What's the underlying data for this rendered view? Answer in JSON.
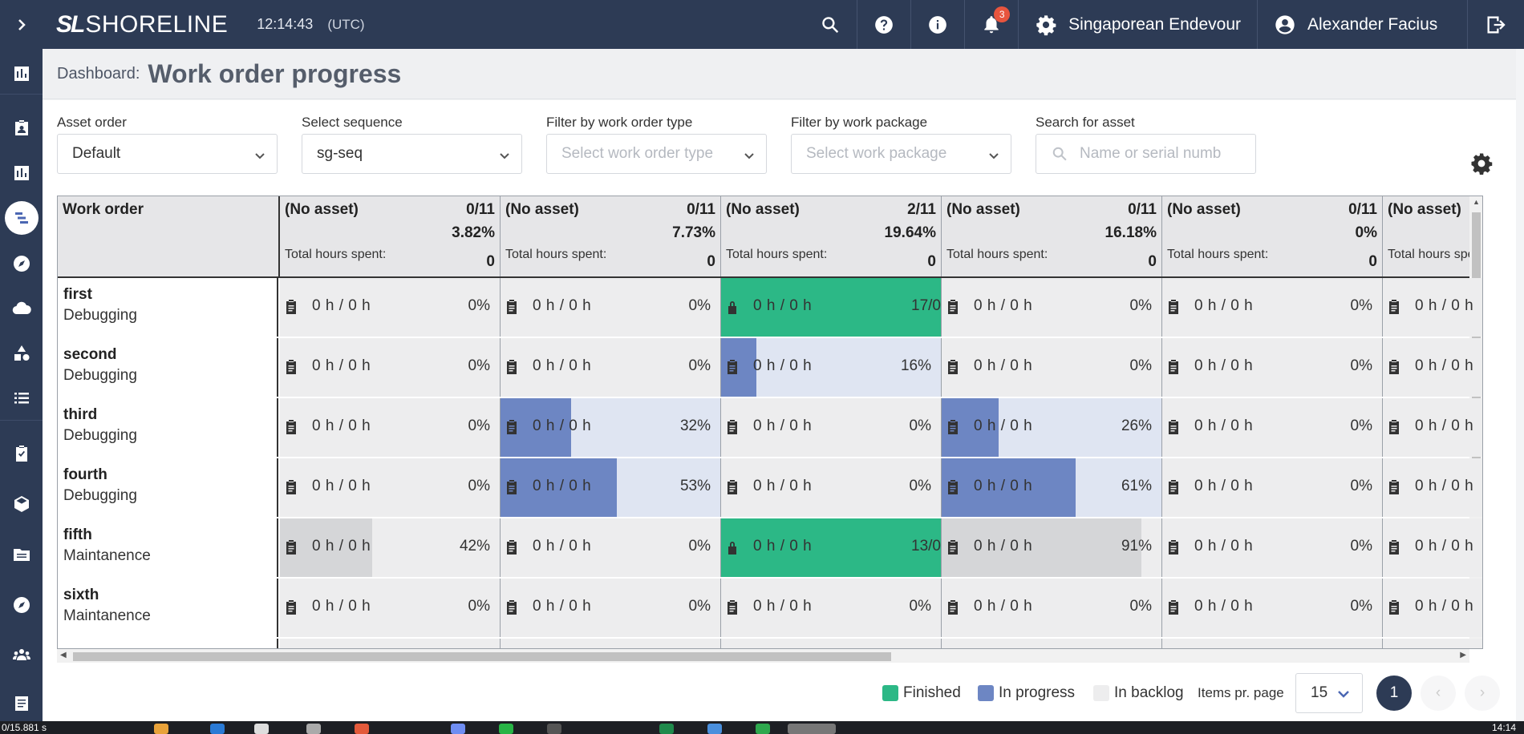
{
  "app": {
    "logo_mark": "SL",
    "logo_word": "SHORELINE",
    "clock": "12:14:43",
    "timezone": "(UTC)"
  },
  "topbar": {
    "notification_count": "3",
    "vessel": "Singaporean Endevour",
    "user": "Alexander Facius"
  },
  "header": {
    "breadcrumb": "Dashboard:",
    "title": "Work order progress"
  },
  "filters": {
    "asset_order": {
      "label": "Asset order",
      "value": "Default"
    },
    "sequence": {
      "label": "Select sequence",
      "value": "sg-seq"
    },
    "work_order_type": {
      "label": "Filter by work order type",
      "placeholder": "Select work order type"
    },
    "work_package": {
      "label": "Filter by work package",
      "placeholder": "Select work package"
    },
    "asset_search": {
      "label": "Search for asset",
      "placeholder": "Name or serial numb"
    }
  },
  "grid": {
    "corner": "Work order",
    "total_hours_label": "Total hours spent:",
    "columns": [
      {
        "asset": "(No asset)",
        "count": "0/11",
        "percent": "3.82%",
        "hours": "0"
      },
      {
        "asset": "(No asset)",
        "count": "0/11",
        "percent": "7.73%",
        "hours": "0"
      },
      {
        "asset": "(No asset)",
        "count": "2/11",
        "percent": "19.64%",
        "hours": "0"
      },
      {
        "asset": "(No asset)",
        "count": "0/11",
        "percent": "16.18%",
        "hours": "0"
      },
      {
        "asset": "(No asset)",
        "count": "0/11",
        "percent": "0%",
        "hours": "0"
      },
      {
        "asset": "(No asset)",
        "count": "",
        "percent": "",
        "hours": ""
      }
    ],
    "rows": [
      {
        "name": "first",
        "type": "Debugging",
        "cells": [
          {
            "text": "0 h / 0 h",
            "pct": "0%",
            "state": "backlog",
            "progress": 0
          },
          {
            "text": "0 h / 0 h",
            "pct": "0%",
            "state": "backlog",
            "progress": 0
          },
          {
            "text": "0 h / 0 h",
            "pct": "17/0",
            "state": "finished",
            "progress": 1
          },
          {
            "text": "0 h / 0 h",
            "pct": "0%",
            "state": "backlog",
            "progress": 0
          },
          {
            "text": "0 h / 0 h",
            "pct": "0%",
            "state": "backlog",
            "progress": 0
          },
          {
            "text": "0 h / 0 h",
            "pct": "",
            "state": "backlog",
            "progress": 0
          }
        ]
      },
      {
        "name": "second",
        "type": "Debugging",
        "cells": [
          {
            "text": "0 h / 0 h",
            "pct": "0%",
            "state": "backlog",
            "progress": 0
          },
          {
            "text": "0 h / 0 h",
            "pct": "0%",
            "state": "backlog",
            "progress": 0
          },
          {
            "text": "0 h / 0 h",
            "pct": "16%",
            "state": "progress",
            "progress": 0.16
          },
          {
            "text": "0 h / 0 h",
            "pct": "0%",
            "state": "backlog",
            "progress": 0
          },
          {
            "text": "0 h / 0 h",
            "pct": "0%",
            "state": "backlog",
            "progress": 0
          },
          {
            "text": "0 h / 0 h",
            "pct": "",
            "state": "backlog",
            "progress": 0
          }
        ]
      },
      {
        "name": "third",
        "type": "Debugging",
        "cells": [
          {
            "text": "0 h / 0 h",
            "pct": "0%",
            "state": "backlog",
            "progress": 0
          },
          {
            "text": "0 h / 0 h",
            "pct": "32%",
            "state": "progress",
            "progress": 0.32
          },
          {
            "text": "0 h / 0 h",
            "pct": "0%",
            "state": "backlog",
            "progress": 0
          },
          {
            "text": "0 h / 0 h",
            "pct": "26%",
            "state": "progress",
            "progress": 0.26
          },
          {
            "text": "0 h / 0 h",
            "pct": "0%",
            "state": "backlog",
            "progress": 0
          },
          {
            "text": "0 h / 0 h",
            "pct": "",
            "state": "backlog",
            "progress": 0
          }
        ]
      },
      {
        "name": "fourth",
        "type": "Debugging",
        "cells": [
          {
            "text": "0 h / 0 h",
            "pct": "0%",
            "state": "backlog",
            "progress": 0
          },
          {
            "text": "0 h / 0 h",
            "pct": "53%",
            "state": "progress",
            "progress": 0.53
          },
          {
            "text": "0 h / 0 h",
            "pct": "0%",
            "state": "backlog",
            "progress": 0
          },
          {
            "text": "0 h / 0 h",
            "pct": "61%",
            "state": "progress",
            "progress": 0.61
          },
          {
            "text": "0 h / 0 h",
            "pct": "0%",
            "state": "backlog",
            "progress": 0
          },
          {
            "text": "0 h / 0 h",
            "pct": "",
            "state": "backlog",
            "progress": 0
          }
        ]
      },
      {
        "name": "fifth",
        "type": "Maintanence",
        "cells": [
          {
            "text": "0 h / 0 h",
            "pct": "42%",
            "state": "backlog-progress",
            "progress": 0.42
          },
          {
            "text": "0 h / 0 h",
            "pct": "0%",
            "state": "backlog",
            "progress": 0
          },
          {
            "text": "0 h / 0 h",
            "pct": "13/0",
            "state": "finished",
            "progress": 1
          },
          {
            "text": "0 h / 0 h",
            "pct": "91%",
            "state": "backlog-progress",
            "progress": 0.91
          },
          {
            "text": "0 h / 0 h",
            "pct": "0%",
            "state": "backlog",
            "progress": 0
          },
          {
            "text": "0 h / 0 h",
            "pct": "",
            "state": "backlog",
            "progress": 0
          }
        ]
      },
      {
        "name": "sixth",
        "type": "Maintanence",
        "cells": [
          {
            "text": "0 h / 0 h",
            "pct": "0%",
            "state": "backlog",
            "progress": 0
          },
          {
            "text": "0 h / 0 h",
            "pct": "0%",
            "state": "backlog",
            "progress": 0
          },
          {
            "text": "0 h / 0 h",
            "pct": "0%",
            "state": "backlog",
            "progress": 0
          },
          {
            "text": "0 h / 0 h",
            "pct": "0%",
            "state": "backlog",
            "progress": 0
          },
          {
            "text": "0 h / 0 h",
            "pct": "0%",
            "state": "backlog",
            "progress": 0
          },
          {
            "text": "0 h / 0 h",
            "pct": "",
            "state": "backlog",
            "progress": 0
          }
        ]
      }
    ]
  },
  "legend": {
    "finished": "Finished",
    "in_progress": "In progress",
    "in_backlog": "In backlog"
  },
  "colors": {
    "finished": "#2cb886",
    "in_progress": "#6d86c3",
    "in_backlog": "#ededee"
  },
  "pagination": {
    "items_per_page_label": "Items pr. page",
    "items_per_page": "15",
    "current_page": "1"
  },
  "taskbar": {
    "left_text": "0/15.881 s",
    "right_text": "14:14"
  }
}
